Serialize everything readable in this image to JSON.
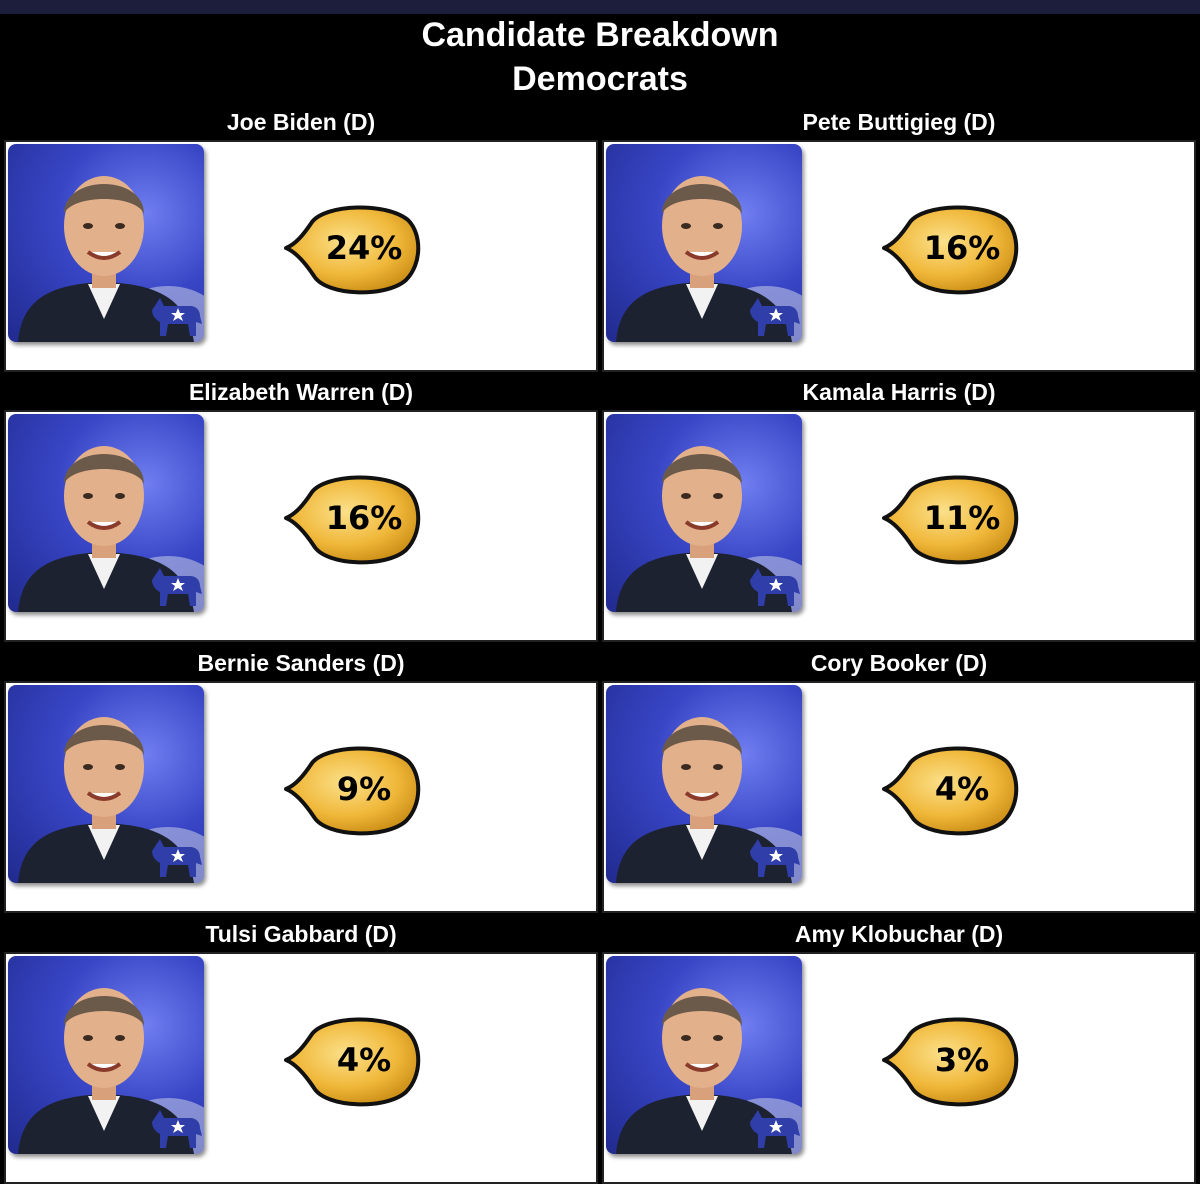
{
  "header": {
    "title": "Candidate Breakdown",
    "subtitle": "Democrats"
  },
  "candidates": [
    {
      "name": "Joe Biden (D)",
      "percent": "24%",
      "party_icon": "donkey-icon"
    },
    {
      "name": "Pete Buttigieg (D)",
      "percent": "16%",
      "party_icon": "donkey-icon"
    },
    {
      "name": "Elizabeth Warren (D)",
      "percent": "16%",
      "party_icon": "donkey-icon"
    },
    {
      "name": "Kamala Harris (D)",
      "percent": "11%",
      "party_icon": "donkey-icon"
    },
    {
      "name": "Bernie Sanders (D)",
      "percent": "9%",
      "party_icon": "donkey-icon"
    },
    {
      "name": "Cory Booker (D)",
      "percent": "4%",
      "party_icon": "donkey-icon"
    },
    {
      "name": "Tulsi Gabbard (D)",
      "percent": "4%",
      "party_icon": "donkey-icon"
    },
    {
      "name": "Amy Klobuchar (D)",
      "percent": "3%",
      "party_icon": "donkey-icon"
    }
  ],
  "colors": {
    "bubble_fill": "#f0b83a",
    "bubble_highlight": "#fbe08a",
    "photo_bg": "#3846c6"
  }
}
